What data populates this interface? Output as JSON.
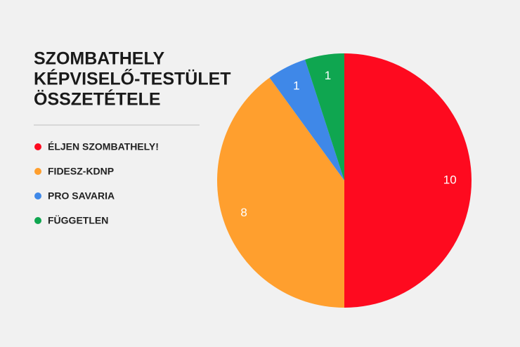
{
  "chart_data": {
    "type": "pie",
    "title": [
      "SZOMBATHELY",
      "KÉPVISELŐ-TESTÜLET",
      "ÖSSZETÉTELE"
    ],
    "categories": [
      "ÉLJEN SZOMBATHELY!",
      "FIDESZ-KDNP",
      "PRO SAVARIA",
      "FÜGGETLEN"
    ],
    "values": [
      10,
      8,
      1,
      1
    ],
    "colors": [
      "#fe0a1f",
      "#ff9f2e",
      "#3f88e8",
      "#0fa650"
    ]
  }
}
